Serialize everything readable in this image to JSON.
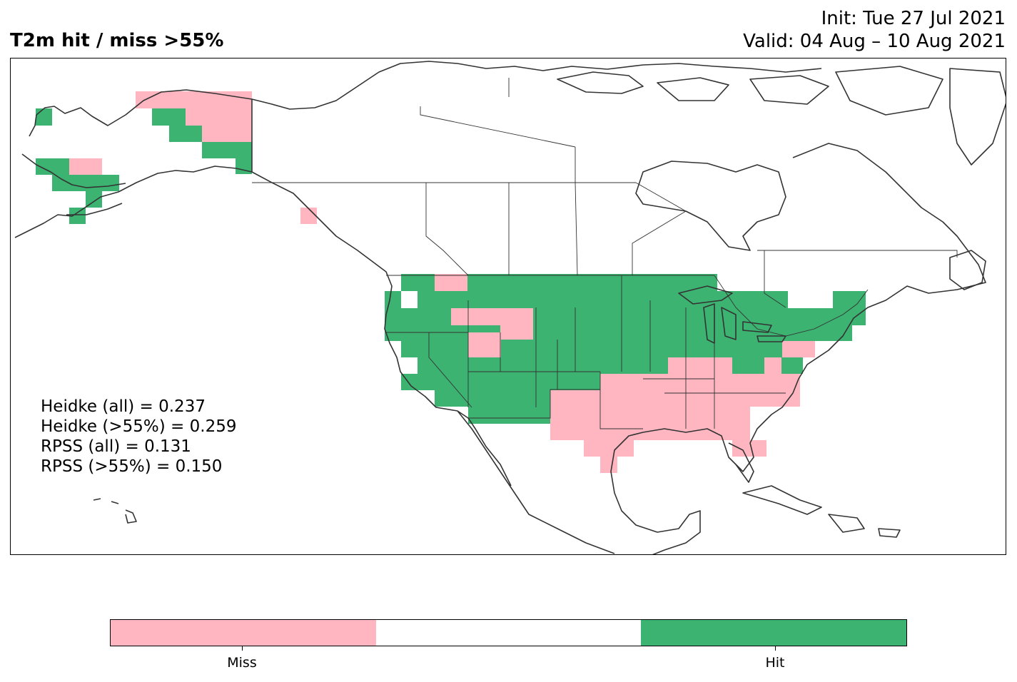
{
  "title": "T2m hit / miss  >55%",
  "init_line": "Init: Tue 27 Jul 2021",
  "valid_line": "Valid: 04 Aug – 10 Aug 2021",
  "colors": {
    "hit": "#3cb371",
    "miss": "#ffb6c1",
    "neutral": "#ffffff",
    "coast": "#333333"
  },
  "scores": {
    "heidke_all": "Heidke (all) = 0.237",
    "heidke_55": "Heidke (>55%) = 0.259",
    "rpss_all": "RPSS (all) = 0.131",
    "rpss_55": "RPSS (>55%) = 0.150"
  },
  "colorbar": {
    "miss_label": "Miss",
    "hit_label": "Hit"
  }
}
